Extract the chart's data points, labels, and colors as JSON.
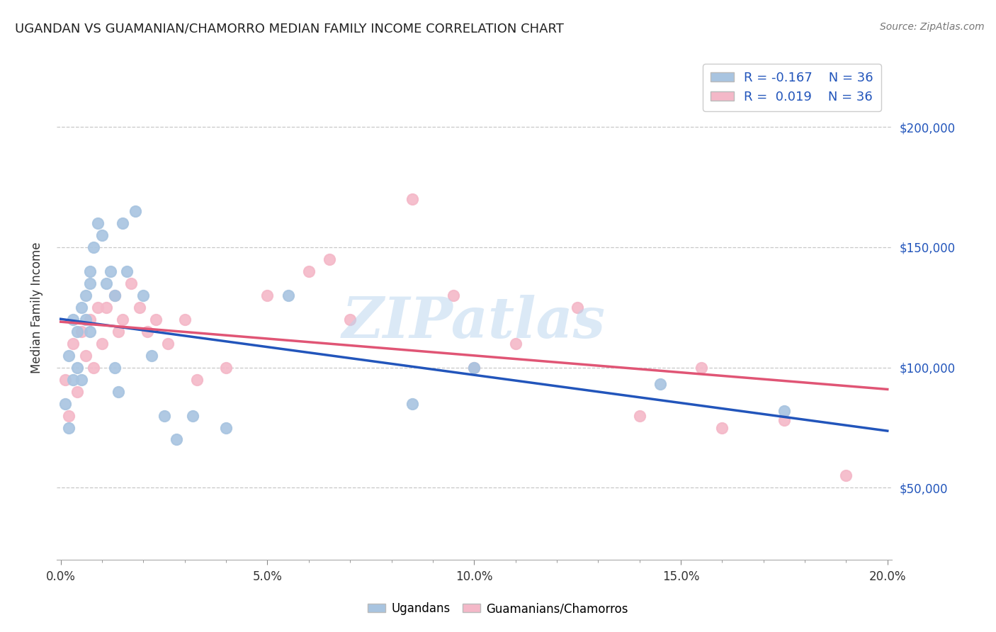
{
  "title": "UGANDAN VS GUAMANIAN/CHAMORRO MEDIAN FAMILY INCOME CORRELATION CHART",
  "source": "Source: ZipAtlas.com",
  "ylabel": "Median Family Income",
  "xlim": [
    -0.001,
    0.201
  ],
  "ylim": [
    20000,
    230000
  ],
  "yticks": [
    50000,
    100000,
    150000,
    200000
  ],
  "ytick_labels": [
    "$50,000",
    "$100,000",
    "$150,000",
    "$200,000"
  ],
  "xticks": [
    0.0,
    0.05,
    0.1,
    0.15,
    0.2
  ],
  "xtick_labels": [
    "0.0%",
    "5.0%",
    "10.0%",
    "15.0%",
    "20.0%"
  ],
  "legend_label1": "Ugandans",
  "legend_label2": "Guamanians/Chamorros",
  "r1": "-0.167",
  "r2": "0.019",
  "n1": 36,
  "n2": 36,
  "color_blue": "#a8c4e0",
  "color_pink": "#f4b8c8",
  "line_blue": "#2255bb",
  "line_pink": "#e05575",
  "watermark": "ZIPatlas",
  "ugandan_x": [
    0.001,
    0.002,
    0.002,
    0.003,
    0.003,
    0.004,
    0.004,
    0.005,
    0.005,
    0.006,
    0.006,
    0.007,
    0.007,
    0.007,
    0.008,
    0.009,
    0.01,
    0.011,
    0.012,
    0.013,
    0.013,
    0.014,
    0.015,
    0.016,
    0.018,
    0.02,
    0.022,
    0.025,
    0.028,
    0.032,
    0.04,
    0.055,
    0.085,
    0.1,
    0.145,
    0.175
  ],
  "ugandan_y": [
    85000,
    75000,
    105000,
    95000,
    120000,
    100000,
    115000,
    125000,
    95000,
    130000,
    120000,
    140000,
    135000,
    115000,
    150000,
    160000,
    155000,
    135000,
    140000,
    130000,
    100000,
    90000,
    160000,
    140000,
    165000,
    130000,
    105000,
    80000,
    70000,
    80000,
    75000,
    130000,
    85000,
    100000,
    93000,
    82000
  ],
  "guamanian_x": [
    0.001,
    0.002,
    0.003,
    0.004,
    0.005,
    0.006,
    0.007,
    0.008,
    0.009,
    0.01,
    0.011,
    0.013,
    0.014,
    0.015,
    0.017,
    0.019,
    0.021,
    0.023,
    0.026,
    0.03,
    0.033,
    0.04,
    0.05,
    0.06,
    0.065,
    0.07,
    0.085,
    0.095,
    0.1,
    0.11,
    0.125,
    0.14,
    0.155,
    0.16,
    0.175,
    0.19
  ],
  "guamanian_y": [
    95000,
    80000,
    110000,
    90000,
    115000,
    105000,
    120000,
    100000,
    125000,
    110000,
    125000,
    130000,
    115000,
    120000,
    135000,
    125000,
    115000,
    120000,
    110000,
    120000,
    95000,
    100000,
    130000,
    140000,
    145000,
    120000,
    170000,
    130000,
    100000,
    110000,
    125000,
    80000,
    100000,
    75000,
    78000,
    55000
  ]
}
